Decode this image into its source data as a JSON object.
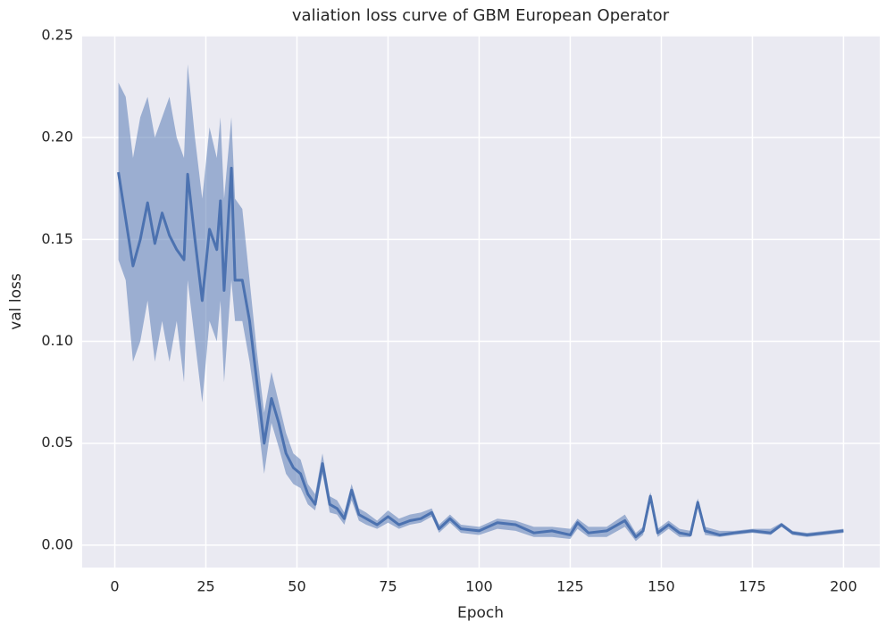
{
  "chart_data": {
    "type": "line",
    "title": "valiation loss curve of GBM European Operator",
    "x_label": "Epoch",
    "y_label": "val loss",
    "x": [
      1,
      3,
      5,
      7,
      9,
      11,
      13,
      15,
      17,
      19,
      20,
      22,
      24,
      26,
      28,
      29,
      30,
      32,
      33,
      35,
      37,
      39,
      41,
      43,
      45,
      47,
      49,
      51,
      53,
      55,
      57,
      59,
      61,
      63,
      65,
      67,
      69,
      72,
      75,
      78,
      81,
      84,
      87,
      89,
      92,
      95,
      100,
      105,
      110,
      115,
      120,
      125,
      127,
      130,
      135,
      140,
      143,
      145,
      147,
      149,
      152,
      155,
      158,
      160,
      162,
      166,
      170,
      175,
      180,
      183,
      186,
      190,
      195,
      200
    ],
    "series": [
      {
        "color": "#4c72b0",
        "values": [
          0.183,
          0.16,
          0.137,
          0.15,
          0.168,
          0.148,
          0.163,
          0.152,
          0.145,
          0.14,
          0.182,
          0.15,
          0.12,
          0.155,
          0.145,
          0.169,
          0.125,
          0.185,
          0.13,
          0.13,
          0.11,
          0.08,
          0.05,
          0.072,
          0.06,
          0.045,
          0.038,
          0.035,
          0.025,
          0.02,
          0.04,
          0.02,
          0.018,
          0.013,
          0.027,
          0.015,
          0.013,
          0.01,
          0.014,
          0.01,
          0.012,
          0.013,
          0.016,
          0.008,
          0.013,
          0.008,
          0.007,
          0.011,
          0.01,
          0.006,
          0.007,
          0.005,
          0.011,
          0.006,
          0.007,
          0.012,
          0.004,
          0.007,
          0.024,
          0.006,
          0.01,
          0.006,
          0.005,
          0.021,
          0.007,
          0.005,
          0.006,
          0.007,
          0.006,
          0.01,
          0.006,
          0.005,
          0.006,
          0.007
        ],
        "lower": [
          0.14,
          0.13,
          0.09,
          0.1,
          0.12,
          0.09,
          0.11,
          0.09,
          0.11,
          0.08,
          0.13,
          0.1,
          0.07,
          0.11,
          0.1,
          0.12,
          0.08,
          0.13,
          0.11,
          0.11,
          0.09,
          0.065,
          0.035,
          0.06,
          0.048,
          0.035,
          0.03,
          0.028,
          0.02,
          0.017,
          0.035,
          0.016,
          0.015,
          0.01,
          0.022,
          0.012,
          0.01,
          0.008,
          0.011,
          0.008,
          0.01,
          0.011,
          0.014,
          0.006,
          0.011,
          0.006,
          0.005,
          0.008,
          0.007,
          0.004,
          0.004,
          0.003,
          0.008,
          0.004,
          0.004,
          0.009,
          0.002,
          0.005,
          0.021,
          0.004,
          0.008,
          0.004,
          0.004,
          0.019,
          0.005,
          0.004,
          0.005,
          0.006,
          0.005,
          0.009,
          0.005,
          0.004,
          0.005,
          0.006
        ],
        "upper": [
          0.227,
          0.22,
          0.19,
          0.21,
          0.22,
          0.2,
          0.21,
          0.22,
          0.2,
          0.19,
          0.236,
          0.2,
          0.17,
          0.205,
          0.19,
          0.21,
          0.17,
          0.21,
          0.17,
          0.165,
          0.13,
          0.095,
          0.065,
          0.085,
          0.07,
          0.055,
          0.045,
          0.042,
          0.03,
          0.025,
          0.045,
          0.024,
          0.022,
          0.016,
          0.03,
          0.018,
          0.016,
          0.012,
          0.017,
          0.013,
          0.015,
          0.016,
          0.018,
          0.01,
          0.015,
          0.01,
          0.009,
          0.013,
          0.012,
          0.009,
          0.009,
          0.008,
          0.013,
          0.009,
          0.009,
          0.015,
          0.006,
          0.009,
          0.026,
          0.008,
          0.012,
          0.008,
          0.007,
          0.023,
          0.009,
          0.007,
          0.007,
          0.008,
          0.008,
          0.011,
          0.007,
          0.006,
          0.007,
          0.008
        ]
      }
    ],
    "xlim": [
      -8.95,
      209.95
    ],
    "xticks": [
      0,
      25,
      50,
      75,
      100,
      125,
      150,
      175,
      200
    ],
    "ylim": [
      -0.011,
      0.25
    ],
    "yticks": [
      {
        "value": 0,
        "label": "0.00"
      },
      {
        "value": 0.05,
        "label": "0.05"
      },
      {
        "value": 0.1,
        "label": "0.10"
      },
      {
        "value": 0.15,
        "label": "0.15"
      },
      {
        "value": 0.2,
        "label": "0.20"
      },
      {
        "value": 0.25,
        "label": "0.25"
      }
    ],
    "grid": true
  }
}
